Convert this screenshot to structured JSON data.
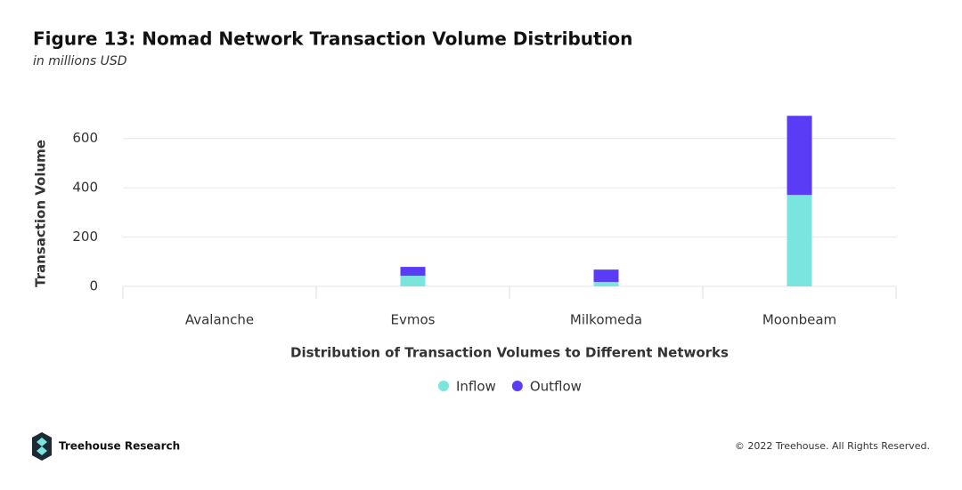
{
  "chart_data": {
    "type": "stacked-bar",
    "title": "Figure 13: Nomad Network Transaction Volume Distribution",
    "subtitle": "in millions USD",
    "y_label": "Transaction Volume",
    "x_label": "Distribution of Transaction Volumes to Different Networks",
    "categories": [
      "Avalanche",
      "Evmos",
      "Milkomeda",
      "Moonbeam"
    ],
    "series": [
      {
        "name": "Inflow",
        "color": "#7ae5df",
        "values": [
          0,
          43,
          18,
          371
        ]
      },
      {
        "name": "Outflow",
        "color": "#5b3cf6",
        "values": [
          0,
          36,
          50,
          321
        ]
      }
    ],
    "ylim": [
      0,
      700
    ],
    "yticks": [
      0,
      200,
      400,
      600
    ],
    "grid": true,
    "legend": "bottom",
    "brand": "Treehouse Research",
    "copyright": "© 2022 Treehouse. All Rights Reserved."
  }
}
